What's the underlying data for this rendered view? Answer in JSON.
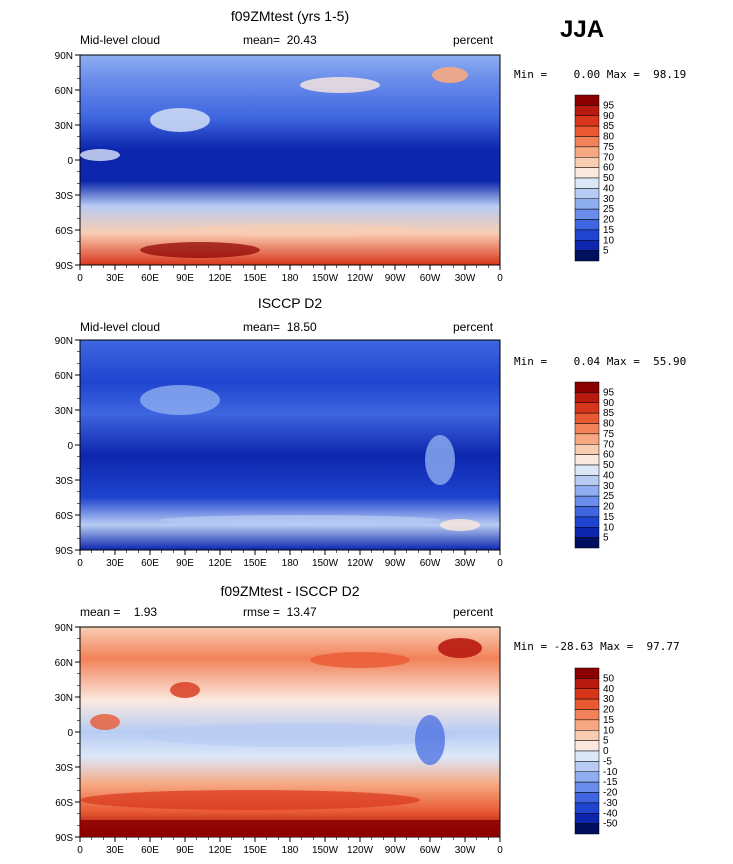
{
  "season": "JJA",
  "panels": [
    {
      "title": "f09ZMtest (yrs 1-5)",
      "left_label": "Mid-level cloud",
      "center_label": "mean=  20.43",
      "right_label": "percent",
      "minmax": "Min =    0.00 Max =  98.19",
      "colorbar_labels": [
        "95",
        "90",
        "85",
        "80",
        "75",
        "70",
        "60",
        "50",
        "40",
        "30",
        "25",
        "20",
        "15",
        "10",
        "5"
      ],
      "colorbar_colors": [
        "#8b0000",
        "#b81a10",
        "#d8361c",
        "#e95a33",
        "#f2825a",
        "#f6a882",
        "#f9cdb2",
        "#fbe9df",
        "#dce7f8",
        "#b8ccf3",
        "#8eaef0",
        "#6a8cea",
        "#3f66e0",
        "#1f44cf",
        "#0c26ad",
        "#00105e"
      ]
    },
    {
      "title": "ISCCP D2",
      "left_label": "Mid-level cloud",
      "center_label": "mean=  18.50",
      "right_label": "percent",
      "minmax": "Min =    0.04 Max =  55.90",
      "colorbar_labels": [
        "95",
        "90",
        "85",
        "80",
        "75",
        "70",
        "60",
        "50",
        "40",
        "30",
        "25",
        "20",
        "15",
        "10",
        "5"
      ],
      "colorbar_colors": [
        "#8b0000",
        "#b81a10",
        "#d8361c",
        "#e95a33",
        "#f2825a",
        "#f6a882",
        "#f9cdb2",
        "#fbe9df",
        "#dce7f8",
        "#b8ccf3",
        "#8eaef0",
        "#6a8cea",
        "#3f66e0",
        "#1f44cf",
        "#0c26ad",
        "#00105e"
      ]
    },
    {
      "title": "f09ZMtest - ISCCP D2",
      "left_label": "mean =    1.93",
      "center_label": "rmse =  13.47",
      "right_label": "percent",
      "minmax": "Min = -28.63 Max =  97.77",
      "colorbar_labels": [
        "50",
        "40",
        "30",
        "20",
        "15",
        "10",
        "5",
        "0",
        "-5",
        "-10",
        "-15",
        "-20",
        "-30",
        "-40",
        "-50"
      ],
      "colorbar_colors": [
        "#8b0000",
        "#b81a10",
        "#d8361c",
        "#e95a33",
        "#f2825a",
        "#f6a882",
        "#f9cdb2",
        "#fbe9df",
        "#dce7f8",
        "#b8ccf3",
        "#8eaef0",
        "#6a8cea",
        "#3f66e0",
        "#1f44cf",
        "#0c26ad",
        "#00105e"
      ]
    }
  ],
  "lat_ticks": [
    "90N",
    "60N",
    "30N",
    "0",
    "30S",
    "60S",
    "90S"
  ],
  "lon_ticks": [
    "0",
    "30E",
    "60E",
    "90E",
    "120E",
    "150E",
    "180",
    "150W",
    "120W",
    "90W",
    "60W",
    "30W",
    "0"
  ]
}
